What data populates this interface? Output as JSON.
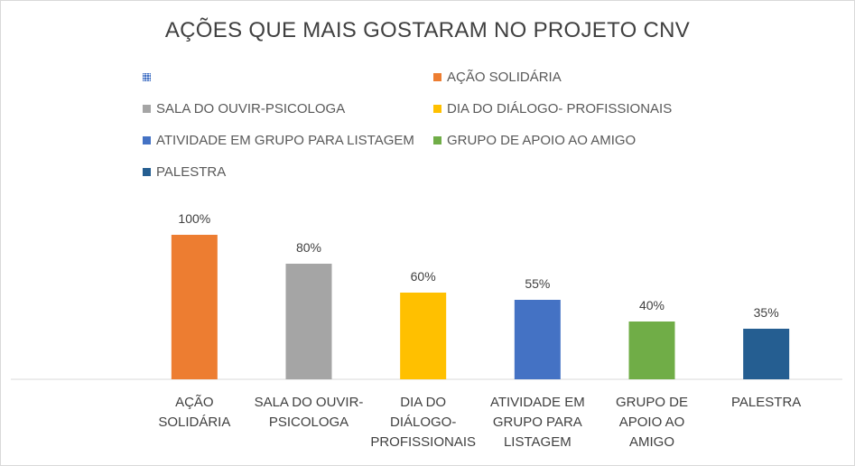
{
  "chart_data": {
    "type": "bar",
    "title": "AÇÕES QUE MAIS GOSTARAM NO PROJETO CNV",
    "categories": [
      [
        "AÇÃO",
        "SOLIDÁRIA"
      ],
      [
        "SALA DO OUVIR-",
        "PSICOLOGA"
      ],
      [
        "DIA DO",
        "DIÁLOGO-",
        "PROFISSIONAIS"
      ],
      [
        "ATIVIDADE EM",
        "GRUPO PARA",
        "LISTAGEM"
      ],
      [
        "GRUPO DE",
        "APOIO AO",
        "AMIGO"
      ],
      [
        "PALESTRA"
      ]
    ],
    "values": [
      100,
      80,
      60,
      55,
      40,
      35
    ],
    "value_labels": [
      "100%",
      "80%",
      "60%",
      "55%",
      "40%",
      "35%"
    ],
    "colors": [
      "#ed7d31",
      "#a5a5a5",
      "#ffc000",
      "#4472c4",
      "#70ad47",
      "#255e91"
    ],
    "ylim": [
      0,
      100
    ],
    "legend": {
      "position": "top",
      "entries": [
        {
          "label": "",
          "color": "#4472c4",
          "pattern": "dotted"
        },
        {
          "label": "AÇÃO SOLIDÁRIA",
          "color": "#ed7d31"
        },
        {
          "label": "SALA DO OUVIR-PSICOLOGA",
          "color": "#a5a5a5"
        },
        {
          "label": "DIA DO DIÁLOGO- PROFISSIONAIS",
          "color": "#ffc000"
        },
        {
          "label": "ATIVIDADE EM GRUPO PARA LISTAGEM",
          "color": "#4472c4"
        },
        {
          "label": "GRUPO DE APOIO AO AMIGO",
          "color": "#70ad47"
        },
        {
          "label": "PALESTRA",
          "color": "#255e91"
        }
      ]
    },
    "grid": false
  }
}
